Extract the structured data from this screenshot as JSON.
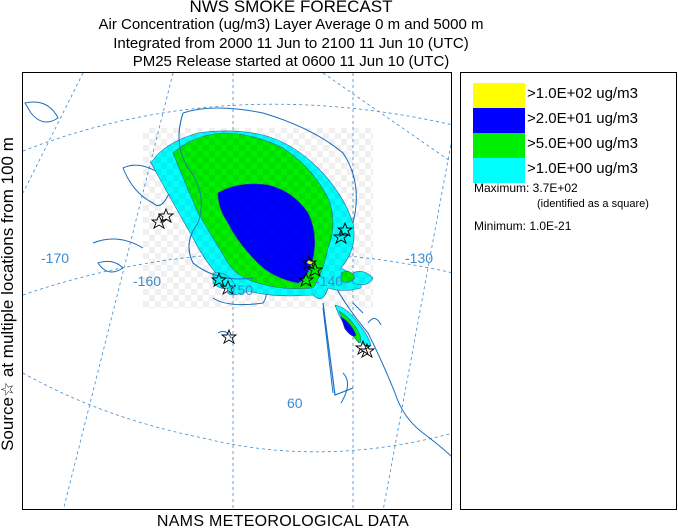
{
  "header": {
    "title": "NWS SMOKE FORECAST",
    "line2": "Air Concentration (ug/m3) Layer Average    0 m and  5000 m",
    "line3": "Integrated from 2000 11 Jun to 2100 11 Jun 10 (UTC)",
    "line4": "PM25 Release started at 0600 11 Jun 10 (UTC)"
  },
  "side_label": "Source☆ at multiple locations from  100 m",
  "footer": "NAMS METEOROLOGICAL DATA",
  "map": {
    "lon_labels": [
      "-170",
      "-160",
      "-150",
      "-140",
      "-130"
    ],
    "lat_labels": [
      "60"
    ]
  },
  "legend": {
    "items": [
      {
        "label": ">1.0E+02 ug/m3",
        "color": "#ffff00"
      },
      {
        "label": ">2.0E+01 ug/m3",
        "color": "#0000ff"
      },
      {
        "label": ">5.0E+00 ug/m3",
        "color": "#00ee00"
      },
      {
        "label": ">1.0E+00 ug/m3",
        "color": "#00ffff"
      }
    ],
    "maximum": "Maximum: 3.7E+02",
    "max_note": "(identified as a square)",
    "minimum": "Minimum: 1.0E-21"
  }
}
